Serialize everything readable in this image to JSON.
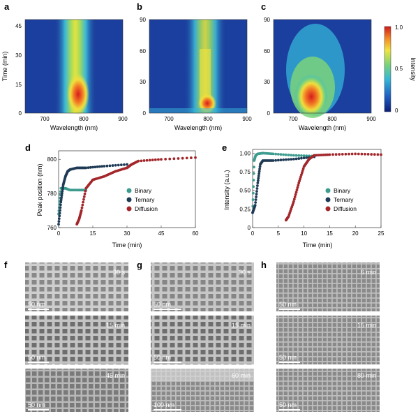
{
  "panels": {
    "a": {
      "label": "a",
      "xlabel": "Wavelength (nm)",
      "ylabel": "Time (min)",
      "xticks": [
        "700",
        "800",
        "900"
      ],
      "yticks": [
        "0",
        "15",
        "30",
        "45"
      ]
    },
    "b": {
      "label": "b",
      "xlabel": "Wavelength (nm)",
      "xticks": [
        "700",
        "800",
        "900"
      ],
      "yticks": [
        "0",
        "30",
        "60",
        "90"
      ]
    },
    "c": {
      "label": "c",
      "xlabel": "Wavelength (nm)",
      "xticks": [
        "700",
        "800",
        "900"
      ],
      "yticks": [
        "0",
        "30",
        "60",
        "90"
      ]
    },
    "colorbar": {
      "label": "Intensity",
      "ticks": [
        "0",
        "0.5",
        "1.0"
      ]
    },
    "d": {
      "label": "d",
      "xlabel": "Time (min)",
      "ylabel": "Peak position (nm)",
      "xticks": [
        "0",
        "15",
        "30",
        "45",
        "60"
      ],
      "yticks": [
        "760",
        "780",
        "800"
      ]
    },
    "e": {
      "label": "e",
      "xlabel": "Time (min)",
      "ylabel": "Intensity (a.u.)",
      "xticks": [
        "0",
        "5",
        "10",
        "15",
        "20",
        "25"
      ],
      "yticks": [
        "0",
        "0.25",
        "0.50",
        "0.75",
        "1.00"
      ]
    },
    "f": {
      "label": "f"
    },
    "g": {
      "label": "g"
    },
    "h": {
      "label": "h"
    }
  },
  "legend": [
    "Binary",
    "Ternary",
    "Diffusion"
  ],
  "colors": {
    "binary": "#3d9c8f",
    "ternary": "#1f3a55",
    "diffusion": "#a3262a"
  },
  "tem": {
    "f": [
      {
        "time": "30 s",
        "scale": "50 nm"
      },
      {
        "time": "15 min",
        "scale": "50 nm"
      },
      {
        "time": "45 min",
        "scale": "50 nm"
      }
    ],
    "g": [
      {
        "time": "30 s",
        "scale": "50 nm"
      },
      {
        "time": "15 min",
        "scale": "50 nm"
      },
      {
        "time": "60 min",
        "scale": "100 nm"
      }
    ],
    "h": [
      {
        "time": "6 min",
        "scale": "50 nm"
      },
      {
        "time": "15 min",
        "scale": "50 nm"
      },
      {
        "time": "80 min",
        "scale": "50 nm"
      }
    ]
  },
  "chart_data": [
    {
      "type": "heatmap",
      "panel": "a",
      "x_range": [
        650,
        900
      ],
      "y_range": [
        0,
        48
      ],
      "peak_wavelength": 785
    },
    {
      "type": "heatmap",
      "panel": "b",
      "x_range": [
        650,
        900
      ],
      "y_range": [
        0,
        90
      ],
      "peak_wavelength": 795
    },
    {
      "type": "heatmap",
      "panel": "c",
      "x_range": [
        650,
        900
      ],
      "y_range": [
        0,
        90
      ],
      "peak_wavelength": 800
    },
    {
      "type": "scatter",
      "panel": "d",
      "xlim": [
        0,
        60
      ],
      "ylim": [
        760,
        805
      ],
      "series": [
        {
          "name": "Binary",
          "x": [
            0,
            1,
            2,
            3,
            5,
            8,
            10,
            12
          ],
          "y": [
            768,
            783,
            783,
            783,
            782,
            782,
            782,
            782
          ]
        },
        {
          "name": "Ternary",
          "x": [
            0,
            1,
            2,
            3,
            4,
            5,
            8,
            12,
            20,
            30
          ],
          "y": [
            762,
            775,
            785,
            790,
            793,
            794,
            795,
            795,
            796,
            797
          ]
        },
        {
          "name": "Diffusion",
          "x": [
            8,
            9,
            10,
            12,
            15,
            20,
            25,
            30,
            32,
            35,
            45,
            60
          ],
          "y": [
            762,
            765,
            770,
            783,
            788,
            790,
            793,
            795,
            797,
            799,
            800,
            801
          ]
        }
      ]
    },
    {
      "type": "scatter",
      "panel": "e",
      "xlim": [
        0,
        25
      ],
      "ylim": [
        0,
        1.05
      ],
      "series": [
        {
          "name": "Binary",
          "x": [
            0,
            0.3,
            0.6,
            1,
            2,
            4,
            8,
            12
          ],
          "y": [
            0.2,
            0.9,
            0.97,
            0.99,
            1.0,
            0.99,
            0.97,
            0.96
          ]
        },
        {
          "name": "Ternary",
          "x": [
            0,
            0.5,
            1,
            1.5,
            2,
            4,
            8,
            12
          ],
          "y": [
            0.2,
            0.3,
            0.6,
            0.85,
            0.9,
            0.9,
            0.92,
            0.95
          ]
        },
        {
          "name": "Diffusion",
          "x": [
            6.5,
            7,
            8,
            9,
            10,
            11,
            12,
            15,
            20,
            25
          ],
          "y": [
            0.1,
            0.15,
            0.35,
            0.6,
            0.82,
            0.92,
            0.97,
            0.98,
            0.99,
            0.98
          ]
        }
      ]
    }
  ]
}
